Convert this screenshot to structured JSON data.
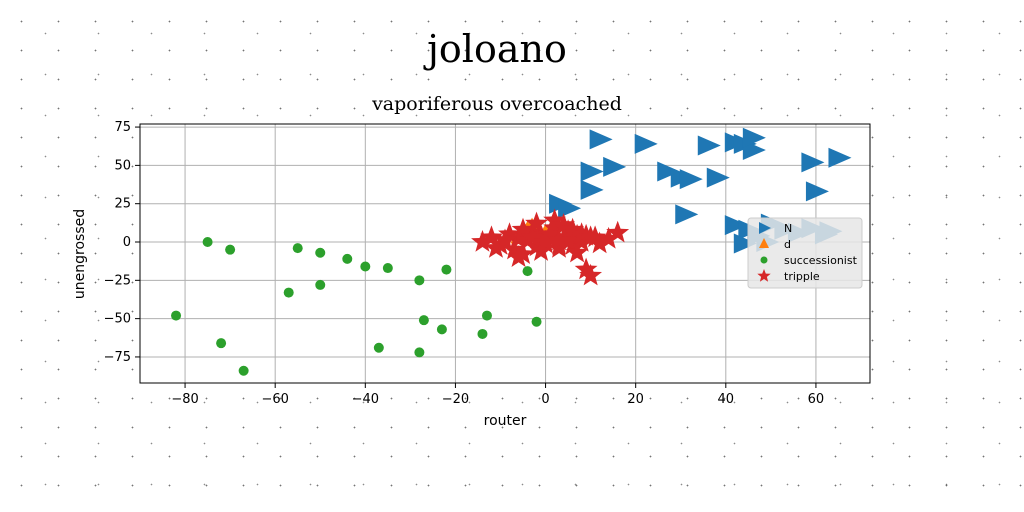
{
  "chart_data": {
    "type": "scatter",
    "title": "joloano",
    "subtitle": "vaporiferous overcoached",
    "xlabel": "router",
    "ylabel": "unengrossed",
    "xlim": [
      -90,
      72
    ],
    "ylim": [
      -92,
      77
    ],
    "xticks": [
      -80,
      -60,
      -40,
      -20,
      0,
      20,
      40,
      60
    ],
    "yticks": [
      -75,
      -50,
      -25,
      0,
      25,
      50,
      75
    ],
    "xtick_labels": [
      "−80",
      "−60",
      "−40",
      "−20",
      "0",
      "20",
      "40",
      "60"
    ],
    "ytick_labels": [
      "−75",
      "−50",
      "−25",
      "0",
      "25",
      "50",
      "75"
    ],
    "grid": true,
    "legend_position": "right",
    "series": [
      {
        "name": "N",
        "marker": "triangle-right",
        "color": "#1f77b4",
        "x": [
          12,
          15,
          10,
          10,
          3,
          5,
          22,
          27,
          30,
          32,
          36,
          38,
          42,
          44,
          46,
          46,
          59,
          60,
          65,
          31,
          42,
          45,
          50,
          47,
          53,
          56,
          59,
          62,
          63,
          44,
          49
        ],
        "y": [
          67,
          49,
          46,
          34,
          25,
          22,
          64,
          46,
          42,
          41,
          63,
          42,
          65,
          64,
          60,
          68,
          52,
          33,
          55,
          18,
          11,
          8,
          12,
          4,
          8,
          6,
          9,
          5,
          7,
          -1,
          0
        ]
      },
      {
        "name": "d",
        "marker": "triangle-up",
        "color": "#ff7f0e",
        "x": [
          -4,
          -2,
          -6,
          0,
          -3
        ],
        "y": [
          8,
          5,
          3,
          6,
          10
        ]
      },
      {
        "name": "successionist",
        "marker": "circle",
        "color": "#2ca02c",
        "x": [
          -75,
          -70,
          -82,
          -72,
          -67,
          -55,
          -50,
          -57,
          -50,
          -44,
          -40,
          -35,
          -37,
          -28,
          -28,
          -27,
          -23,
          -22,
          -14,
          -13,
          -4,
          -2
        ],
        "y": [
          0,
          -5,
          -48,
          -66,
          -84,
          -4,
          -7,
          -33,
          -28,
          -11,
          -16,
          -17,
          -69,
          -72,
          -25,
          -51,
          -57,
          -18,
          -60,
          -48,
          -19,
          -52
        ]
      },
      {
        "name": "tripple",
        "marker": "star",
        "color": "#d62728",
        "x": [
          -14,
          -12,
          -10,
          -8,
          -7,
          -6,
          -5,
          -4,
          -3,
          -2,
          -1,
          0,
          1,
          2,
          3,
          4,
          5,
          6,
          7,
          8,
          9,
          10,
          11,
          12,
          14,
          16,
          -11,
          -9,
          -5,
          -3,
          -1,
          1,
          3,
          5,
          7,
          9,
          2,
          4,
          6,
          8,
          10,
          -6,
          -2,
          0,
          3
        ],
        "y": [
          0,
          3,
          -2,
          5,
          -5,
          2,
          -8,
          1,
          6,
          -3,
          4,
          -1,
          3,
          9,
          -4,
          2,
          7,
          -2,
          4,
          0,
          -18,
          -22,
          3,
          -1,
          2,
          6,
          -4,
          1,
          8,
          3,
          -6,
          5,
          -2,
          1,
          -7,
          4,
          14,
          11,
          8,
          5,
          3,
          -10,
          12,
          0,
          1
        ]
      }
    ]
  }
}
